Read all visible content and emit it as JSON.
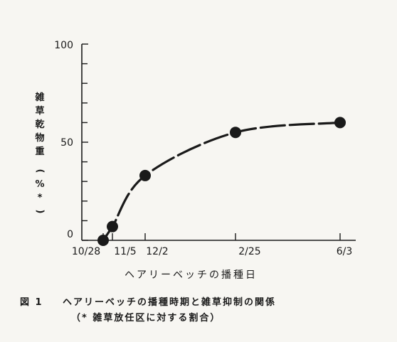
{
  "chart_data": {
    "type": "line",
    "x": [
      "10/28",
      "11/5",
      "12/2",
      "2/25",
      "6/3"
    ],
    "tick_labels_x": [
      "10/28",
      "11/5",
      "12/2",
      "2/25",
      "6/3"
    ],
    "values": [
      0,
      7,
      33,
      55,
      60
    ],
    "y_tick_labels": [
      "0",
      "50",
      "100"
    ],
    "ylim": [
      0,
      100
    ],
    "ylabel_chars": [
      "雑",
      "草",
      "乾",
      "物",
      "重"
    ],
    "ylabel_paren_open": "(",
    "ylabel_unit": "%",
    "ylabel_mark": "*",
    "ylabel_paren_close": ")",
    "xlabel": "ヘアリーベッチの播種日",
    "grid": false,
    "marker": "filled-circle",
    "line_style": "dashed-smooth"
  },
  "caption": {
    "number": "図 1",
    "title": "ヘアリーベッチの播種時期と雑草抑制の関係",
    "note": "（*  雑草放任区に対する割合）"
  },
  "colors": {
    "ink": "#1a1a1a",
    "paper": "#f7f6f2"
  }
}
